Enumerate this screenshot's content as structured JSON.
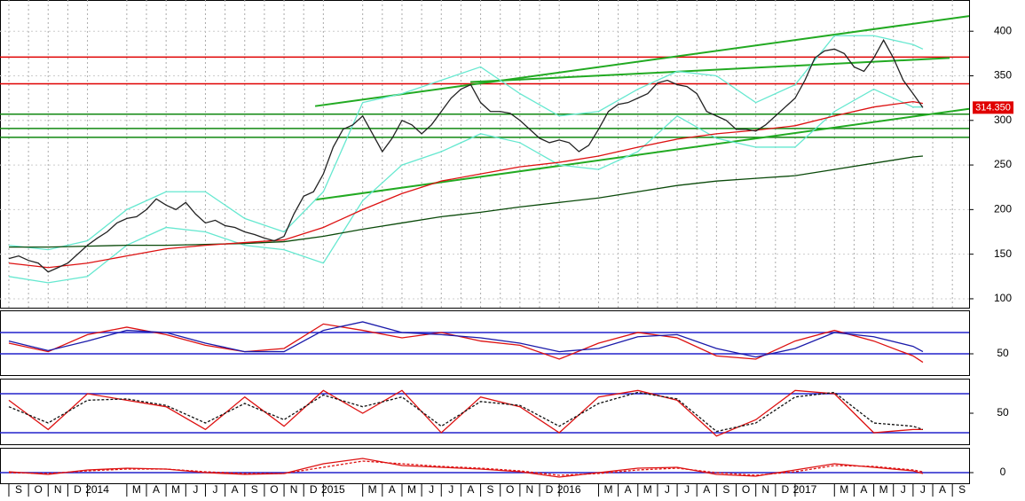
{
  "chart_data": [
    {
      "type": "line",
      "xlim": [
        -0.45,
        48.85
      ],
      "ylim": [
        90,
        435
      ],
      "yticks": [
        100,
        150,
        200,
        250,
        300,
        350,
        400
      ],
      "grid": true,
      "last_label": "314.350",
      "last_color": "#e00000",
      "hlines": [
        {
          "value": 371,
          "color": "#e00000"
        },
        {
          "value": 341,
          "color": "#e00000"
        },
        {
          "value": 307,
          "color": "#118811"
        },
        {
          "value": 291,
          "color": "#118811"
        },
        {
          "value": 281,
          "color": "#118811"
        }
      ],
      "trendlines": [
        {
          "x": [
            15.58,
            48.85
          ],
          "values": [
            316,
            417
          ],
          "color": "#22aa22"
        },
        {
          "x": [
            15.58,
            48.85
          ],
          "values": [
            211,
            313
          ],
          "color": "#22aa22"
        },
        {
          "x": [
            23.48,
            47.86
          ],
          "values": [
            343,
            370
          ],
          "color": "#22aa22"
        }
      ],
      "series": [
        {
          "color": "#66e8d0",
          "x": [
            0,
            2,
            4,
            6,
            8,
            10,
            12,
            14,
            16,
            18,
            20,
            22,
            24,
            26,
            28,
            30,
            32,
            34,
            36,
            38,
            40,
            42,
            44,
            46,
            46.5
          ],
          "values": [
            160,
            155,
            165,
            200,
            220,
            220,
            190,
            175,
            220,
            320,
            330,
            345,
            360,
            330,
            305,
            310,
            335,
            355,
            350,
            320,
            340,
            395,
            395,
            385,
            380
          ]
        },
        {
          "color": "#66e8d0",
          "x": [
            0,
            2,
            4,
            6,
            8,
            10,
            12,
            14,
            16,
            18,
            20,
            22,
            24,
            26,
            28,
            30,
            32,
            34,
            36,
            38,
            40,
            42,
            44,
            46,
            46.5
          ],
          "values": [
            125,
            118,
            125,
            160,
            180,
            175,
            160,
            155,
            140,
            210,
            250,
            265,
            285,
            275,
            250,
            245,
            265,
            305,
            280,
            270,
            270,
            310,
            335,
            315,
            315
          ]
        },
        {
          "color": "#0a4a0a",
          "x": [
            0,
            2,
            4,
            6,
            8,
            10,
            12,
            14,
            16,
            18,
            20,
            22,
            24,
            26,
            28,
            30,
            32,
            34,
            36,
            38,
            40,
            42,
            44,
            46,
            46.5
          ],
          "values": [
            158,
            158,
            159,
            160,
            160,
            161,
            162,
            164,
            170,
            178,
            185,
            192,
            197,
            203,
            208,
            213,
            220,
            227,
            232,
            235,
            238,
            245,
            252,
            259,
            260
          ]
        },
        {
          "color": "#dd1111",
          "x": [
            0,
            2,
            4,
            6,
            8,
            10,
            12,
            14,
            16,
            18,
            20,
            22,
            24,
            26,
            28,
            30,
            32,
            34,
            36,
            38,
            40,
            42,
            44,
            46,
            46.5
          ],
          "values": [
            140,
            135,
            140,
            148,
            156,
            160,
            163,
            166,
            180,
            200,
            218,
            232,
            240,
            248,
            253,
            260,
            270,
            279,
            285,
            289,
            294,
            305,
            315,
            321,
            319
          ]
        },
        {
          "color": "#222222",
          "x": [
            0,
            0.5,
            1,
            1.5,
            2,
            2.5,
            3,
            3.5,
            4,
            4.5,
            5,
            5.5,
            6,
            6.5,
            7,
            7.5,
            8,
            8.5,
            9,
            9.5,
            10,
            10.5,
            11,
            11.5,
            12,
            12.5,
            13,
            13.5,
            14,
            14.5,
            15,
            15.5,
            16,
            16.5,
            17,
            17.5,
            18,
            18.5,
            19,
            19.5,
            20,
            20.5,
            21,
            21.5,
            22,
            22.5,
            23,
            23.5,
            24,
            24.5,
            25,
            25.5,
            26,
            26.5,
            27,
            27.5,
            28,
            28.5,
            29,
            29.5,
            30,
            30.5,
            31,
            31.5,
            32,
            32.5,
            33,
            33.5,
            34,
            34.5,
            35,
            35.5,
            36,
            36.5,
            37,
            37.5,
            38,
            38.5,
            39,
            39.5,
            40,
            40.5,
            41,
            41.5,
            42,
            42.5,
            43,
            43.5,
            44,
            44.5,
            45,
            45.5,
            46,
            46.5
          ],
          "values": [
            145,
            148,
            143,
            140,
            130,
            135,
            140,
            150,
            160,
            168,
            175,
            185,
            190,
            192,
            200,
            212,
            205,
            200,
            208,
            195,
            185,
            188,
            182,
            180,
            175,
            172,
            168,
            165,
            170,
            195,
            215,
            220,
            240,
            270,
            290,
            295,
            305,
            285,
            265,
            280,
            300,
            295,
            285,
            295,
            310,
            325,
            335,
            340,
            320,
            310,
            310,
            308,
            300,
            290,
            280,
            275,
            278,
            275,
            265,
            272,
            290,
            310,
            318,
            320,
            325,
            330,
            342,
            345,
            340,
            338,
            330,
            310,
            305,
            300,
            290,
            290,
            288,
            295,
            305,
            315,
            325,
            345,
            370,
            378,
            380,
            375,
            360,
            355,
            370,
            390,
            370,
            345,
            330,
            314.35
          ]
        }
      ]
    },
    {
      "type": "line",
      "xlim": [
        -0.45,
        48.85
      ],
      "ylim": [
        30,
        90.8
      ],
      "yticks": [
        50
      ],
      "hlines": [
        {
          "value": 70,
          "color": "#2222cc"
        },
        {
          "value": 50,
          "color": "#2222cc"
        }
      ],
      "series": [
        {
          "color": "#dd1111",
          "x": [
            0,
            2,
            4,
            6,
            8,
            10,
            12,
            14,
            16,
            18,
            20,
            22,
            24,
            26,
            28,
            30,
            32,
            34,
            36,
            38,
            40,
            42,
            44,
            46,
            46.5
          ],
          "values": [
            60,
            52,
            68,
            75,
            68,
            58,
            52,
            55,
            78,
            72,
            65,
            70,
            62,
            58,
            45,
            60,
            70,
            65,
            48,
            45,
            62,
            72,
            62,
            48,
            42
          ]
        },
        {
          "color": "#1a1aaa",
          "x": [
            0,
            2,
            4,
            6,
            8,
            10,
            12,
            14,
            16,
            18,
            20,
            22,
            24,
            26,
            28,
            30,
            32,
            34,
            36,
            38,
            40,
            42,
            44,
            46,
            46.5
          ],
          "values": [
            62,
            53,
            62,
            72,
            70,
            60,
            52,
            52,
            72,
            80,
            70,
            68,
            65,
            60,
            52,
            55,
            66,
            68,
            55,
            47,
            55,
            70,
            66,
            57,
            52
          ]
        }
      ]
    },
    {
      "type": "line",
      "xlim": [
        -0.45,
        48.85
      ],
      "ylim": [
        2.3,
        103.2
      ],
      "yticks": [
        50
      ],
      "hlines": [
        {
          "value": 80,
          "color": "#2222cc"
        },
        {
          "value": 20,
          "color": "#2222cc"
        }
      ],
      "series": [
        {
          "color": "#dd1111",
          "x": [
            0,
            2,
            4,
            6,
            8,
            10,
            12,
            14,
            16,
            18,
            20,
            22,
            24,
            26,
            28,
            30,
            32,
            34,
            36,
            38,
            40,
            42,
            44,
            46,
            46.5
          ],
          "values": [
            70,
            25,
            80,
            70,
            60,
            25,
            75,
            30,
            85,
            50,
            85,
            20,
            75,
            60,
            20,
            75,
            85,
            70,
            15,
            40,
            85,
            80,
            20,
            25,
            25
          ]
        },
        {
          "color": "#111111",
          "dashed": true,
          "x": [
            0,
            2,
            4,
            6,
            8,
            10,
            12,
            14,
            16,
            18,
            20,
            22,
            24,
            26,
            28,
            30,
            32,
            34,
            36,
            38,
            40,
            42,
            44,
            46,
            46.5
          ],
          "values": [
            60,
            35,
            70,
            72,
            62,
            35,
            65,
            40,
            78,
            60,
            75,
            30,
            68,
            62,
            30,
            65,
            82,
            72,
            22,
            35,
            75,
            82,
            35,
            30,
            25
          ]
        }
      ]
    },
    {
      "type": "line",
      "xlim": [
        -0.45,
        48.85
      ],
      "ylim": [
        -12,
        28
      ],
      "yticks": [
        0
      ],
      "hlines": [
        {
          "value": 0,
          "color": "#2222cc"
        }
      ],
      "xticks": [
        {
          "value": 0,
          "label": "S"
        },
        {
          "value": 1,
          "label": "O"
        },
        {
          "value": 2,
          "label": "N"
        },
        {
          "value": 3,
          "label": "D"
        },
        {
          "value": 4,
          "label": "2014"
        },
        {
          "value": 6,
          "label": "M"
        },
        {
          "value": 7,
          "label": "A"
        },
        {
          "value": 8,
          "label": "M"
        },
        {
          "value": 9,
          "label": "J"
        },
        {
          "value": 10,
          "label": "J"
        },
        {
          "value": 11,
          "label": "A"
        },
        {
          "value": 12,
          "label": "S"
        },
        {
          "value": 13,
          "label": "O"
        },
        {
          "value": 14,
          "label": "N"
        },
        {
          "value": 15,
          "label": "D"
        },
        {
          "value": 16,
          "label": "2015"
        },
        {
          "value": 18,
          "label": "M"
        },
        {
          "value": 19,
          "label": "A"
        },
        {
          "value": 20,
          "label": "M"
        },
        {
          "value": 21,
          "label": "J"
        },
        {
          "value": 22,
          "label": "J"
        },
        {
          "value": 23,
          "label": "A"
        },
        {
          "value": 24,
          "label": "S"
        },
        {
          "value": 25,
          "label": "O"
        },
        {
          "value": 26,
          "label": "N"
        },
        {
          "value": 27,
          "label": "D"
        },
        {
          "value": 28,
          "label": "2016"
        },
        {
          "value": 30,
          "label": "M"
        },
        {
          "value": 31,
          "label": "A"
        },
        {
          "value": 32,
          "label": "M"
        },
        {
          "value": 33,
          "label": "J"
        },
        {
          "value": 34,
          "label": "J"
        },
        {
          "value": 35,
          "label": "A"
        },
        {
          "value": 36,
          "label": "S"
        },
        {
          "value": 37,
          "label": "O"
        },
        {
          "value": 38,
          "label": "N"
        },
        {
          "value": 39,
          "label": "D"
        },
        {
          "value": 40,
          "label": "2017"
        },
        {
          "value": 42,
          "label": "M"
        },
        {
          "value": 43,
          "label": "A"
        },
        {
          "value": 44,
          "label": "M"
        },
        {
          "value": 45,
          "label": "J"
        },
        {
          "value": 46,
          "label": "J"
        },
        {
          "value": 47,
          "label": "A"
        },
        {
          "value": 48,
          "label": "S"
        }
      ],
      "series": [
        {
          "color": "#dd1111",
          "x": [
            0,
            2,
            4,
            6,
            8,
            10,
            12,
            14,
            16,
            18,
            20,
            22,
            24,
            26,
            28,
            30,
            32,
            34,
            36,
            38,
            40,
            42,
            44,
            46,
            46.5
          ],
          "values": [
            1,
            -2,
            3,
            5,
            4,
            0,
            -2,
            -1,
            10,
            16,
            8,
            6,
            4,
            1,
            -5,
            0,
            5,
            6,
            -2,
            -4,
            3,
            10,
            6,
            2,
            -1
          ]
        },
        {
          "color": "#dd1111",
          "dashed": true,
          "x": [
            0,
            2,
            4,
            6,
            8,
            10,
            12,
            14,
            16,
            18,
            20,
            22,
            24,
            26,
            28,
            30,
            32,
            34,
            36,
            38,
            40,
            42,
            44,
            46,
            46.5
          ],
          "values": [
            0,
            -1,
            2,
            4,
            4,
            1,
            -1,
            -1,
            6,
            13,
            10,
            7,
            5,
            2,
            -3,
            -1,
            3,
            5,
            0,
            -3,
            1,
            8,
            7,
            3,
            1
          ]
        }
      ]
    }
  ]
}
